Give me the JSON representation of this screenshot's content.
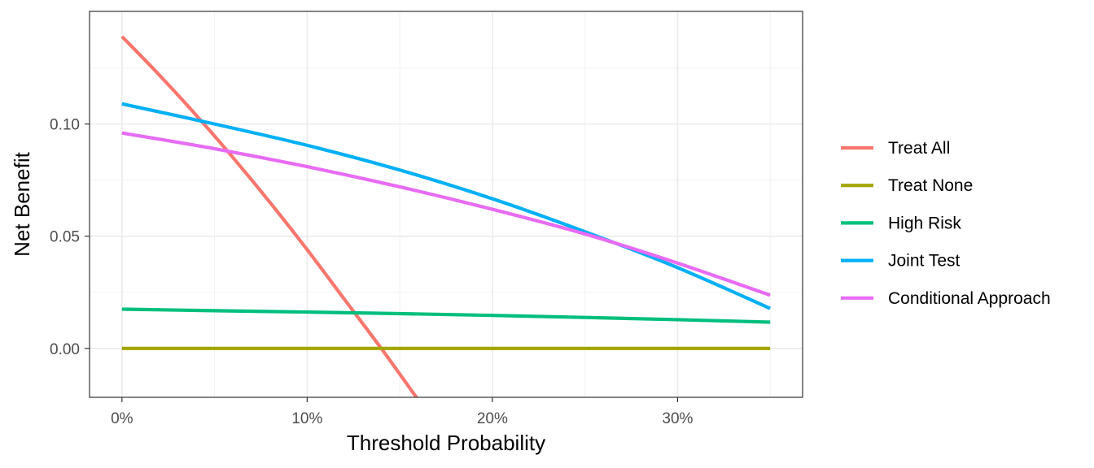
{
  "chart_data": {
    "type": "line",
    "title": "",
    "xlabel": "Threshold Probability",
    "ylabel": "Net Benefit",
    "xlim": [
      -0.0175,
      0.3675
    ],
    "ylim": [
      -0.0218,
      0.1502
    ],
    "grid": true,
    "legend_position": "right",
    "x_ticks": [
      {
        "value": 0.0,
        "label": "0%"
      },
      {
        "value": 0.1,
        "label": "10%"
      },
      {
        "value": 0.2,
        "label": "20%"
      },
      {
        "value": 0.3,
        "label": "30%"
      }
    ],
    "y_ticks": [
      {
        "value": 0.0,
        "label": "0.00"
      },
      {
        "value": 0.05,
        "label": "0.05"
      },
      {
        "value": 0.1,
        "label": "0.10"
      }
    ],
    "series": [
      {
        "name": "Treat All",
        "color": "#F8766D",
        "x": [
          0.0,
          0.02,
          0.04,
          0.06,
          0.08,
          0.1,
          0.12,
          0.14,
          0.16
        ],
        "y": [
          0.139,
          0.122,
          0.104,
          0.085,
          0.065,
          0.044,
          0.022,
          0.0,
          -0.023
        ]
      },
      {
        "name": "Treat None",
        "color": "#A3A500",
        "x": [
          0.0,
          0.35
        ],
        "y": [
          0.0,
          0.0
        ]
      },
      {
        "name": "High Risk",
        "color": "#00BF7D",
        "x": [
          0.0,
          0.05,
          0.1,
          0.15,
          0.2,
          0.25,
          0.3,
          0.35
        ],
        "y": [
          0.0175,
          0.0168,
          0.0162,
          0.0155,
          0.0147,
          0.0138,
          0.0128,
          0.0117
        ]
      },
      {
        "name": "Joint Test",
        "color": "#00B0F6",
        "x": [
          0.0,
          0.05,
          0.1,
          0.15,
          0.2,
          0.25,
          0.3,
          0.35
        ],
        "y": [
          0.109,
          0.1,
          0.0905,
          0.0795,
          0.0667,
          0.052,
          0.036,
          0.0178
        ]
      },
      {
        "name": "Conditional Approach",
        "color": "#E76BF3",
        "x": [
          0.0,
          0.05,
          0.1,
          0.15,
          0.2,
          0.25,
          0.3,
          0.35
        ],
        "y": [
          0.096,
          0.089,
          0.081,
          0.072,
          0.062,
          0.051,
          0.038,
          0.0237
        ]
      }
    ]
  }
}
